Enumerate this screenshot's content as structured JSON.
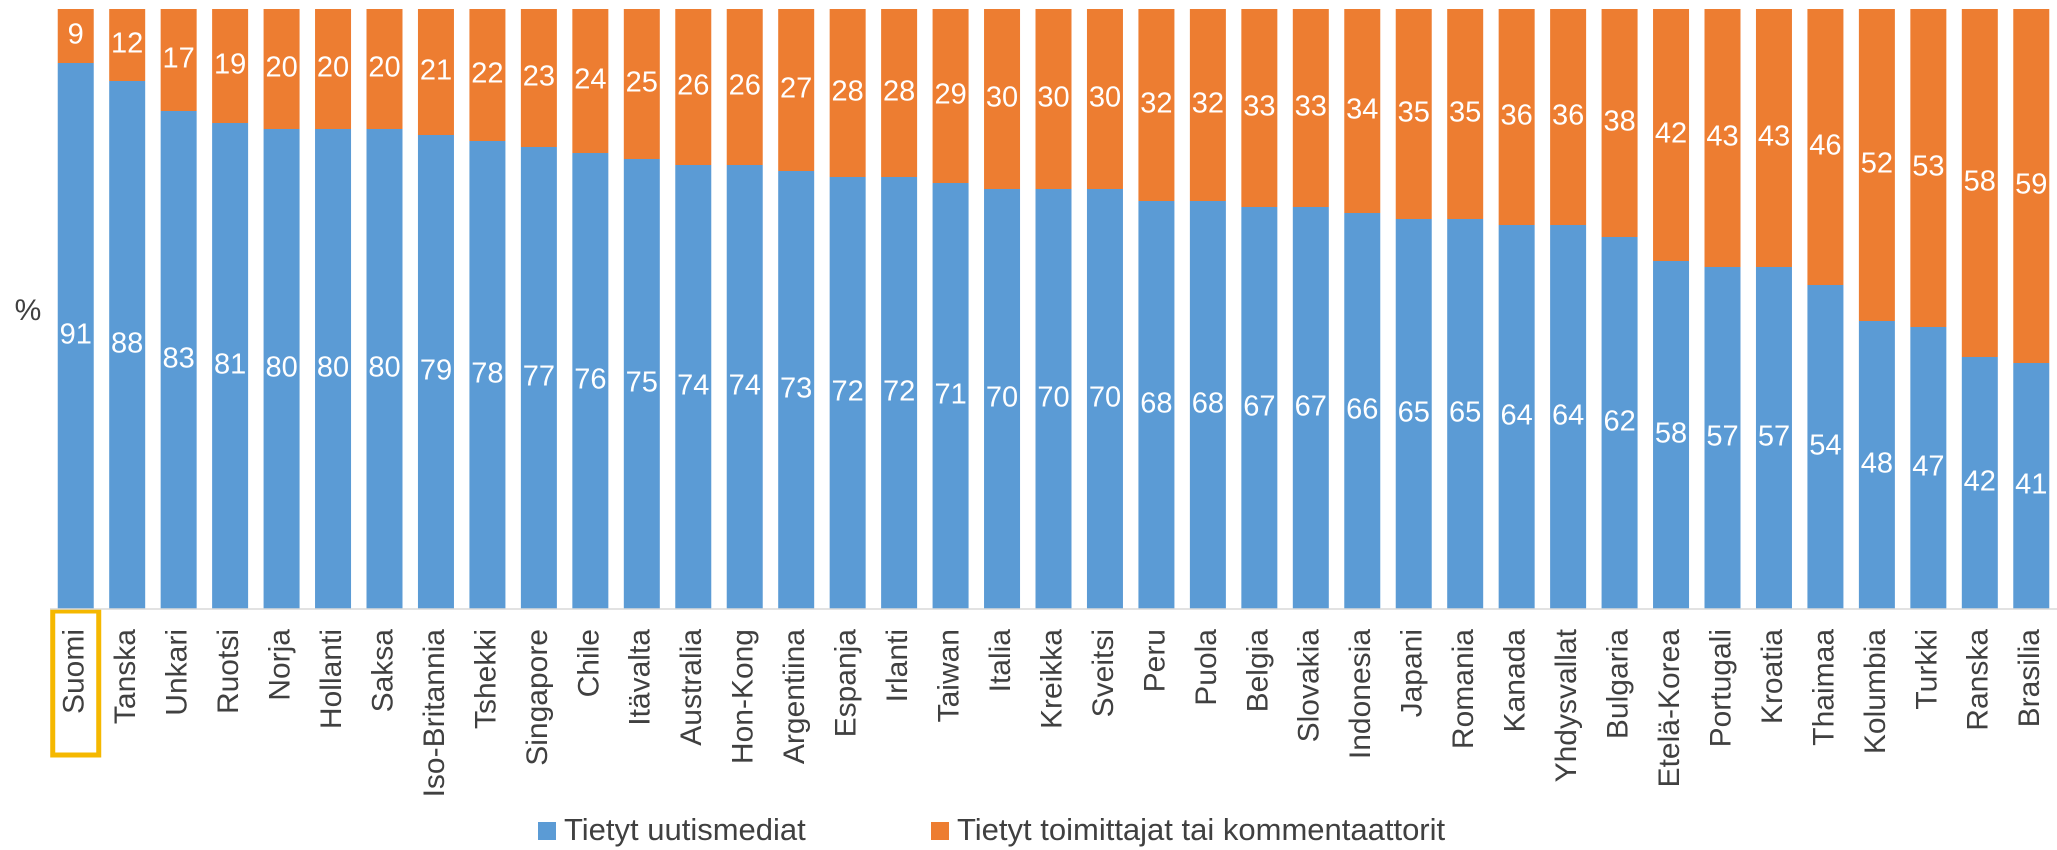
{
  "chart_data": {
    "type": "stacked_bar",
    "y_label": "%",
    "categories": [
      "Suomi",
      "Tanska",
      "Unkari",
      "Ruotsi",
      "Norja",
      "Hollanti",
      "Saksa",
      "Iso-Britannia",
      "Tshekki",
      "Singapore",
      "Chile",
      "Itävalta",
      "Australia",
      "Hon-Kong",
      "Argentiina",
      "Espanja",
      "Irlanti",
      "Taiwan",
      "Italia",
      "Kreikka",
      "Sveitsi",
      "Peru",
      "Puola",
      "Belgia",
      "Slovakia",
      "Indonesia",
      "Japani",
      "Romania",
      "Kanada",
      "Yhdysvallat",
      "Bulgaria",
      "Etelä-Korea",
      "Portugali",
      "Kroatia",
      "Thaimaa",
      "Kolumbia",
      "Turkki",
      "Ranska",
      "Brasilia"
    ],
    "series": [
      {
        "name": "Tietyt uutismediat",
        "color": "#5b9bd5",
        "values": [
          91,
          88,
          83,
          81,
          80,
          80,
          80,
          79,
          78,
          77,
          76,
          75,
          74,
          74,
          73,
          72,
          72,
          71,
          70,
          70,
          70,
          68,
          68,
          67,
          67,
          66,
          65,
          65,
          64,
          64,
          62,
          58,
          57,
          57,
          54,
          48,
          47,
          42,
          41
        ]
      },
      {
        "name": "Tietyt toimittajat tai kommentaattorit",
        "color": "#ed7d31",
        "values": [
          9,
          12,
          17,
          19,
          20,
          20,
          20,
          21,
          22,
          23,
          24,
          25,
          26,
          26,
          27,
          28,
          28,
          29,
          30,
          30,
          30,
          32,
          32,
          33,
          33,
          34,
          35,
          35,
          36,
          36,
          38,
          42,
          43,
          43,
          46,
          52,
          53,
          58,
          59
        ]
      }
    ],
    "ylim": [
      0,
      100
    ],
    "highlight_color": "#f5b800"
  }
}
